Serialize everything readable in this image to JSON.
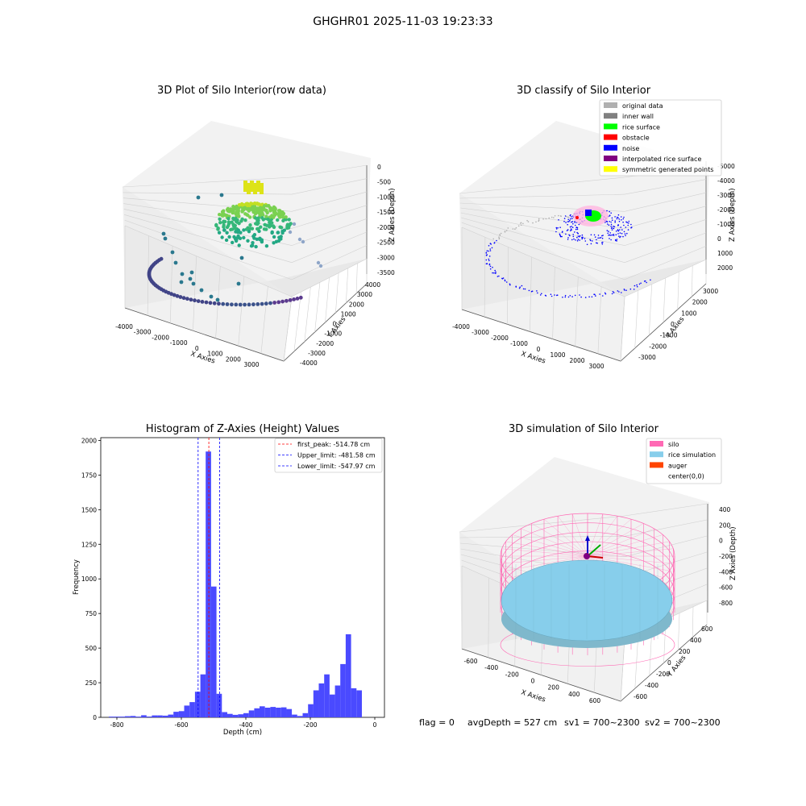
{
  "figure": {
    "suptitle": "GHGHR01 2025-11-03 19:23:33"
  },
  "status": {
    "flag": "flag = 0",
    "avg_depth": "avgDepth = 527 cm",
    "sv1": "sv1 = 700~2300",
    "sv2": "sv2 = 700~2300"
  },
  "chart_data": [
    {
      "type": "scatter",
      "projection": "3d",
      "title": "3D Plot of Silo Interior(row data)",
      "xlabel": "X Axies",
      "ylabel": "Y Axies",
      "zlabel": "Z Axies (Depth)",
      "xticks": [
        -4000,
        -3000,
        -2000,
        -1000,
        0,
        1000,
        2000,
        3000
      ],
      "yticks": [
        -4000,
        -3000,
        -2000,
        -1000,
        0,
        1000,
        2000,
        3000,
        4000
      ],
      "zticks": [
        -3500,
        -3000,
        -2500,
        -2000,
        -1500,
        -1000,
        -500,
        0
      ],
      "colormap": "viridis",
      "point_groups": [
        {
          "name": "rice pile",
          "z_approx": -800,
          "color": "#8fd744"
        },
        {
          "name": "outer ring",
          "z_approx": -3400,
          "color": "#3b528b"
        },
        {
          "name": "scattered wall points",
          "z_approx": -2500,
          "color": "#21918c"
        }
      ]
    },
    {
      "type": "scatter",
      "projection": "3d",
      "title": "3D classify of Silo Interior",
      "xlabel": "X Axies",
      "ylabel": "Y Axies",
      "zlabel": "Z Axies (Depth)",
      "xticks": [
        -4000,
        -3000,
        -2000,
        -1000,
        0,
        1000,
        2000,
        3000
      ],
      "yticks": [
        -3000,
        -2000,
        -1000,
        0,
        1000,
        2000,
        3000
      ],
      "zticks": [
        -5000,
        -4000,
        -3000,
        -2000,
        -1000,
        0,
        1000,
        2000
      ],
      "legend": [
        {
          "label": "original data",
          "color": "#b0b0b0"
        },
        {
          "label": "inner wall",
          "color": "#808080"
        },
        {
          "label": "rice surface",
          "color": "#00ff00"
        },
        {
          "label": "obstacle",
          "color": "#ff0000"
        },
        {
          "label": "noise",
          "color": "#0000ff"
        },
        {
          "label": "interpolated rice surface",
          "color": "#800080"
        },
        {
          "label": "symmetric generated points",
          "color": "#ffff00"
        }
      ],
      "legend_position": "top-right"
    },
    {
      "type": "bar",
      "title": "Histogram of Z-Axies (Height) Values",
      "xlabel": "Depth (cm)",
      "ylabel": "Frequency",
      "xlim": [
        -850,
        30
      ],
      "ylim": [
        0,
        2020
      ],
      "xticks": [
        -800,
        -600,
        -400,
        -200,
        0
      ],
      "yticks": [
        0,
        250,
        500,
        750,
        1000,
        1250,
        1500,
        1750,
        2000
      ],
      "bar_color": "#4a4aff",
      "bin_width": 16.7,
      "bin_start": -825,
      "values": [
        5,
        5,
        5,
        8,
        10,
        5,
        15,
        6,
        14,
        14,
        12,
        20,
        40,
        45,
        85,
        110,
        185,
        310,
        1920,
        945,
        170,
        38,
        25,
        18,
        22,
        30,
        50,
        65,
        80,
        70,
        75,
        70,
        72,
        60,
        20,
        10,
        30,
        95,
        195,
        245,
        310,
        165,
        230,
        385,
        600,
        210,
        195
      ],
      "vlines": [
        {
          "label": "first_peak: -514.78 cm",
          "x": -514.78,
          "color": "#ff0000"
        },
        {
          "label": "Upper_limit: -481.58 cm",
          "x": -481.58,
          "color": "#0000ff"
        },
        {
          "label": "Lower_limit: -547.97 cm",
          "x": -547.97,
          "color": "#0000ff"
        }
      ],
      "legend_position": "top-right",
      "grid": false
    },
    {
      "type": "surface",
      "projection": "3d",
      "title": "3D simulation of Silo Interior",
      "xlabel": "X Axies",
      "ylabel": "Y Axies",
      "zlabel": "Z Axies (Depth)",
      "xticks": [
        -600,
        -400,
        -200,
        0,
        200,
        400,
        600
      ],
      "yticks": [
        -600,
        -400,
        -200,
        0,
        200,
        400,
        600
      ],
      "zticks": [
        -800,
        -600,
        -400,
        -200,
        0,
        200,
        400
      ],
      "legend": [
        {
          "label": "silo",
          "color": "#ff69b4"
        },
        {
          "label": "rice simulation",
          "color": "#87ceeb"
        },
        {
          "label": "auger",
          "color": "#ff4500"
        },
        {
          "label": "center(0,0)",
          "color": ""
        }
      ],
      "legend_position": "top-right"
    }
  ]
}
